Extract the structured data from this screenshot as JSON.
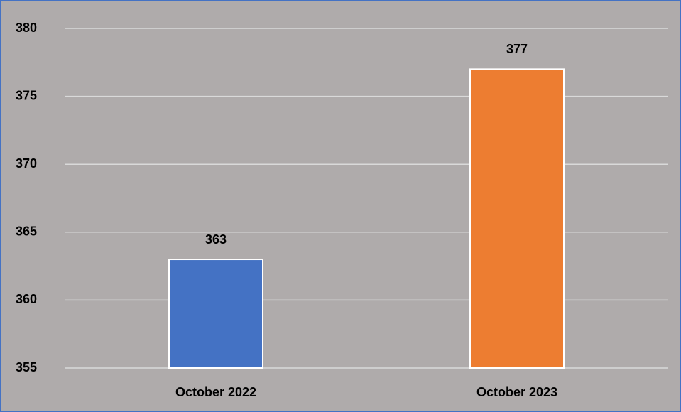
{
  "chart_data": {
    "type": "bar",
    "categories": [
      "October 2022",
      "October 2023"
    ],
    "values": [
      363,
      377
    ],
    "colors": [
      "#4472c4",
      "#ed7d31"
    ],
    "ylim": [
      355,
      380
    ],
    "yticks": [
      355,
      360,
      365,
      370,
      375,
      380
    ],
    "grid": true,
    "data_labels": true
  }
}
